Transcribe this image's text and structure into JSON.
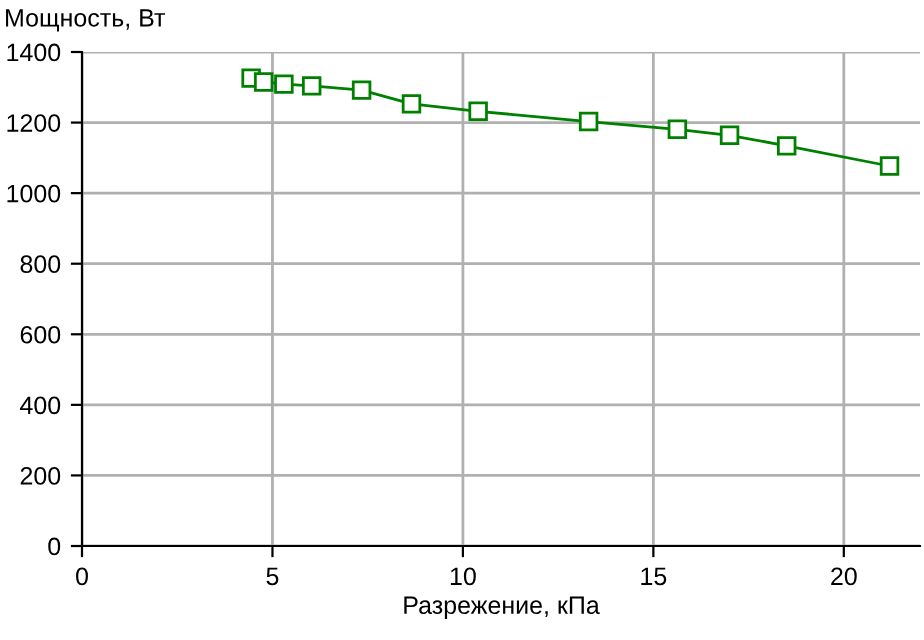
{
  "chart_data": {
    "type": "line",
    "ylabel": "Мощность, Вт",
    "xlabel": "Разрежение, кПа",
    "series": [
      {
        "color": "#008000",
        "x": [
          4.44,
          4.77,
          5.3,
          6.03,
          7.34,
          8.65,
          10.4,
          13.3,
          15.63,
          17.0,
          18.5,
          21.2
        ],
        "values": [
          1326,
          1315,
          1309,
          1304,
          1292,
          1253,
          1232,
          1203,
          1181,
          1164,
          1134,
          1077
        ]
      }
    ],
    "xlim": [
      0,
      22
    ],
    "xticks": [
      0,
      5,
      10,
      15,
      20
    ],
    "ylim": [
      0,
      1400
    ],
    "yticks": [
      0,
      200,
      400,
      600,
      800,
      1000,
      1200,
      1400
    ],
    "grid": true,
    "marker": "square",
    "line_style": "solid"
  }
}
